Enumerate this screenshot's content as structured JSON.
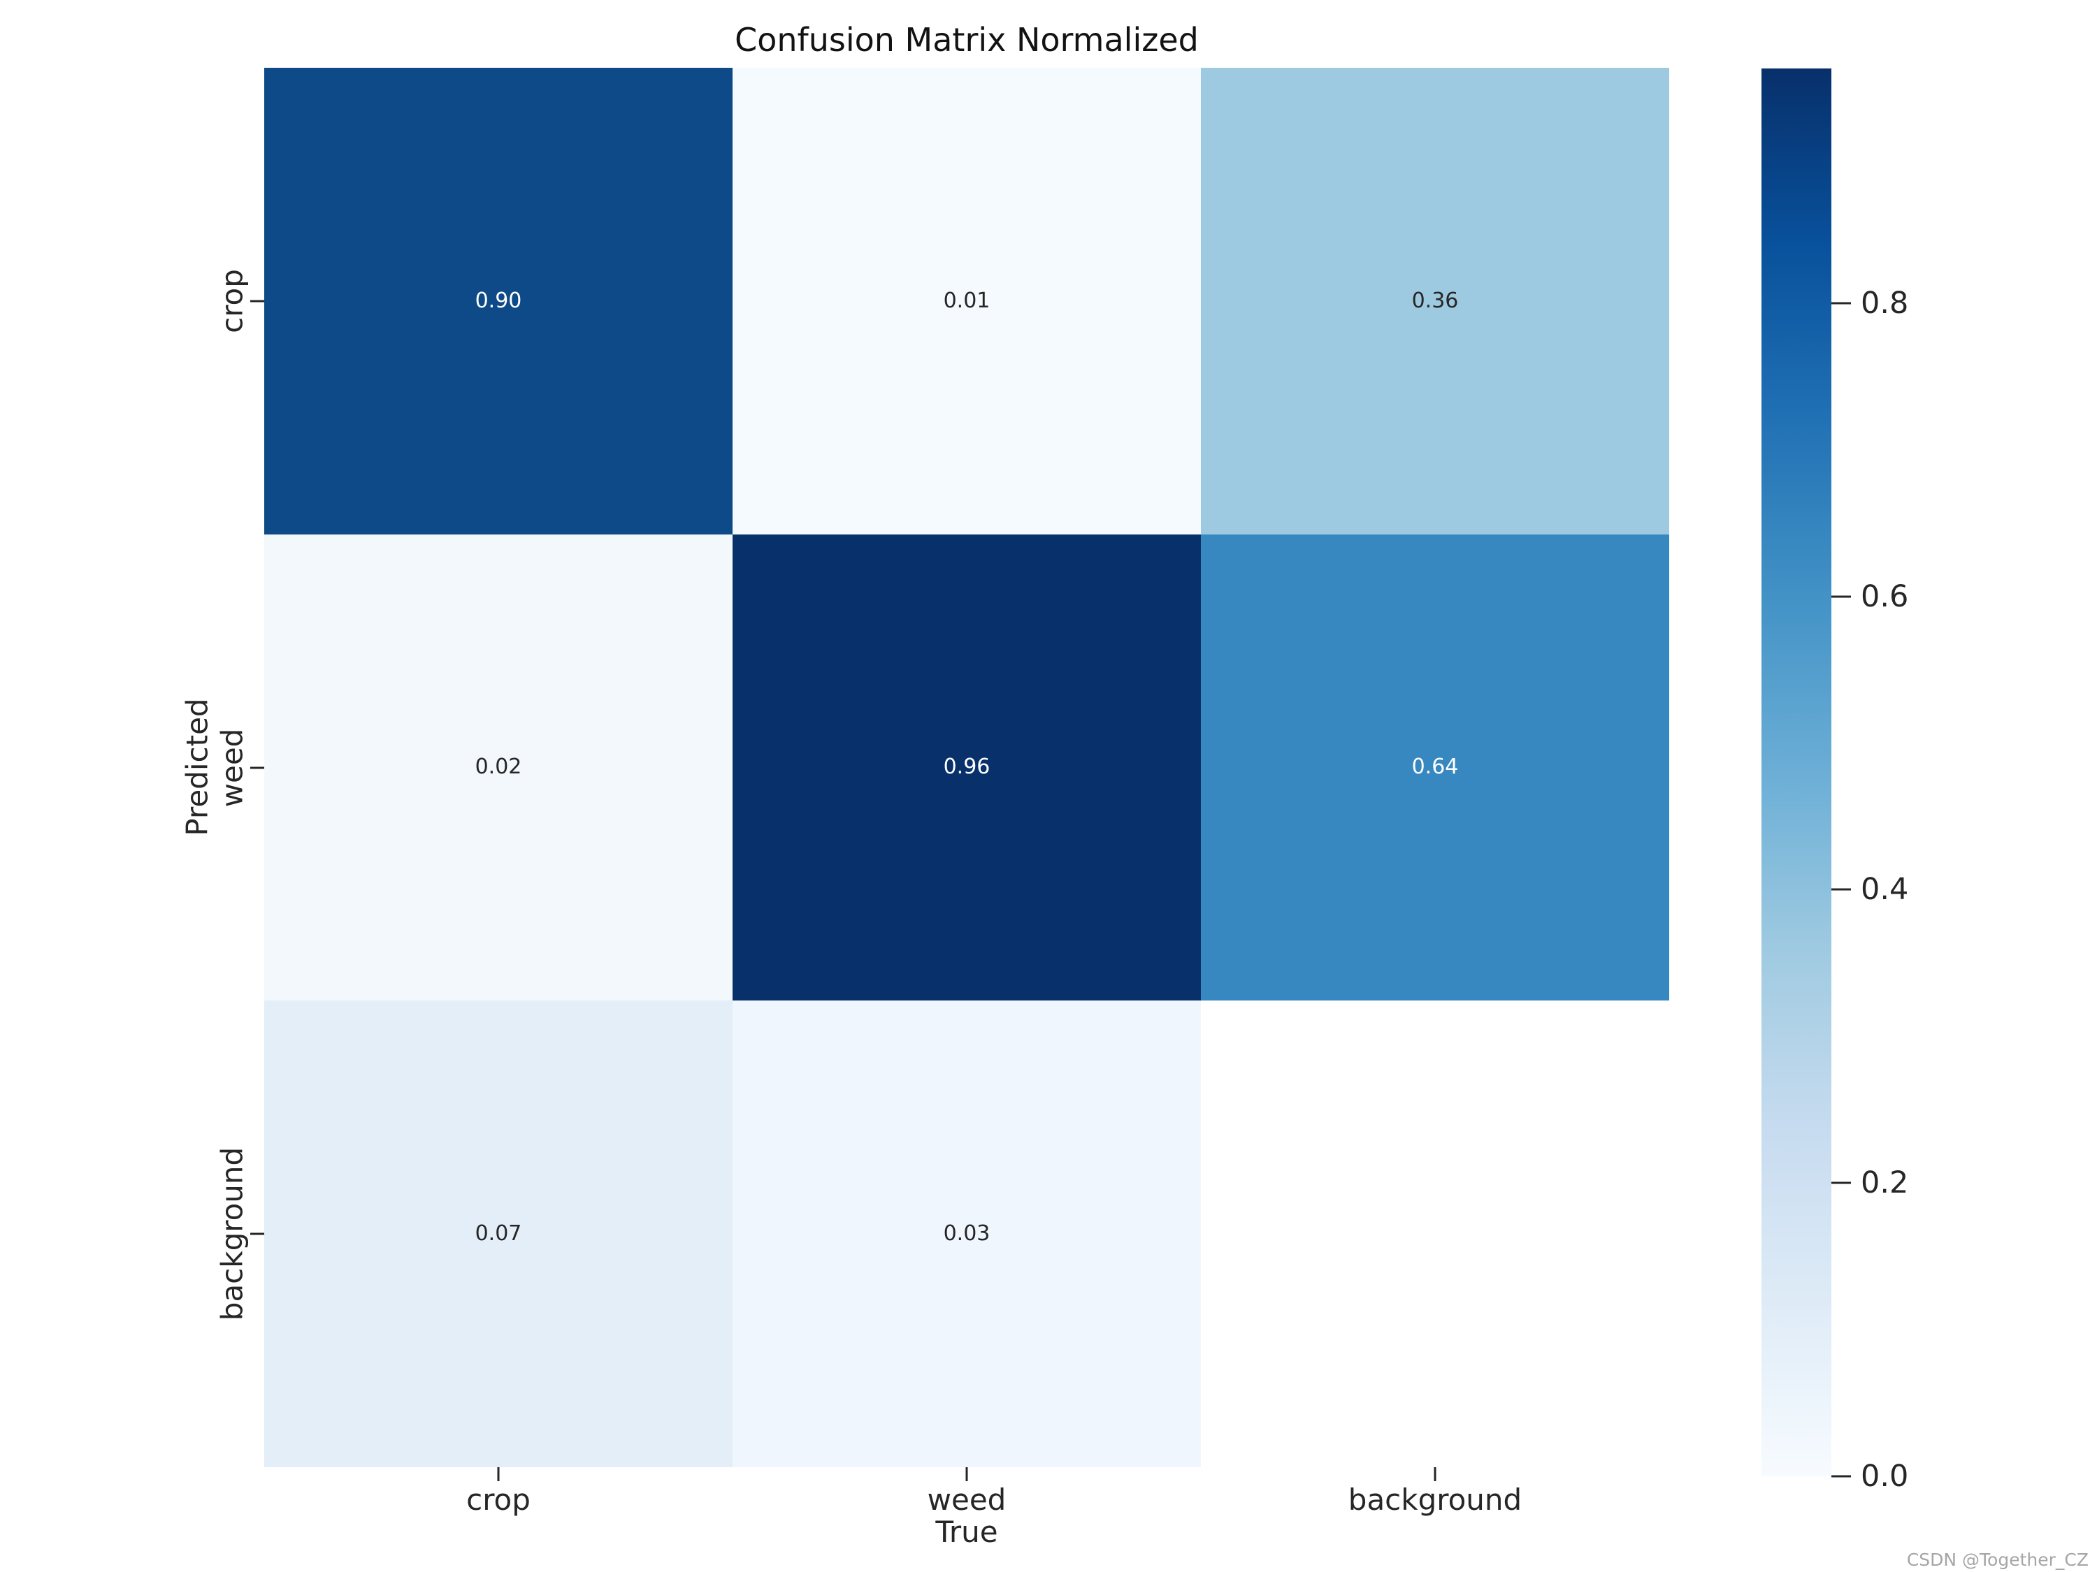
{
  "title": "Confusion Matrix Normalized",
  "watermark": "CSDN @Together_CZ",
  "chart_data": {
    "type": "heatmap",
    "title": "Confusion Matrix Normalized",
    "xlabel": "True",
    "ylabel": "Predicted",
    "x_categories": [
      "crop",
      "weed",
      "background"
    ],
    "y_categories": [
      "crop",
      "weed",
      "background"
    ],
    "matrix": [
      [
        0.9,
        0.01,
        0.36
      ],
      [
        0.02,
        0.96,
        0.64
      ],
      [
        0.07,
        0.03,
        null
      ]
    ],
    "annotations": [
      [
        "0.90",
        "0.01",
        "0.36"
      ],
      [
        "0.02",
        "0.96",
        "0.64"
      ],
      [
        "0.07",
        "0.03",
        null
      ]
    ],
    "cell_colors": [
      [
        "#0d4a87",
        "#f5fafe",
        "#9ecae1"
      ],
      [
        "#f3f8fd",
        "#08306b",
        "#3787c0"
      ],
      [
        "#e4eef8",
        "#f0f6fd",
        "#ffffff"
      ]
    ],
    "annotation_colors": [
      [
        "#ffffff",
        "#262626",
        "#262626"
      ],
      [
        "#262626",
        "#ffffff",
        "#ffffff"
      ],
      [
        "#262626",
        "#262626",
        null
      ]
    ],
    "colormap": "Blues",
    "vmin": 0.0,
    "vmax": 0.96,
    "grid": false,
    "colorbar": {
      "tick_labels": [
        "0.0",
        "0.2",
        "0.4",
        "0.6",
        "0.8"
      ],
      "tick_values": [
        0.0,
        0.2,
        0.4,
        0.6,
        0.8
      ],
      "gradient_stops": [
        {
          "pos": 0.0,
          "color": "#f7fbff"
        },
        {
          "pos": 0.125,
          "color": "#deebf7"
        },
        {
          "pos": 0.25,
          "color": "#c6dbef"
        },
        {
          "pos": 0.375,
          "color": "#9ecae1"
        },
        {
          "pos": 0.5,
          "color": "#6baed6"
        },
        {
          "pos": 0.625,
          "color": "#4292c6"
        },
        {
          "pos": 0.75,
          "color": "#2171b5"
        },
        {
          "pos": 0.875,
          "color": "#08519c"
        },
        {
          "pos": 1.0,
          "color": "#08306b"
        }
      ]
    }
  }
}
